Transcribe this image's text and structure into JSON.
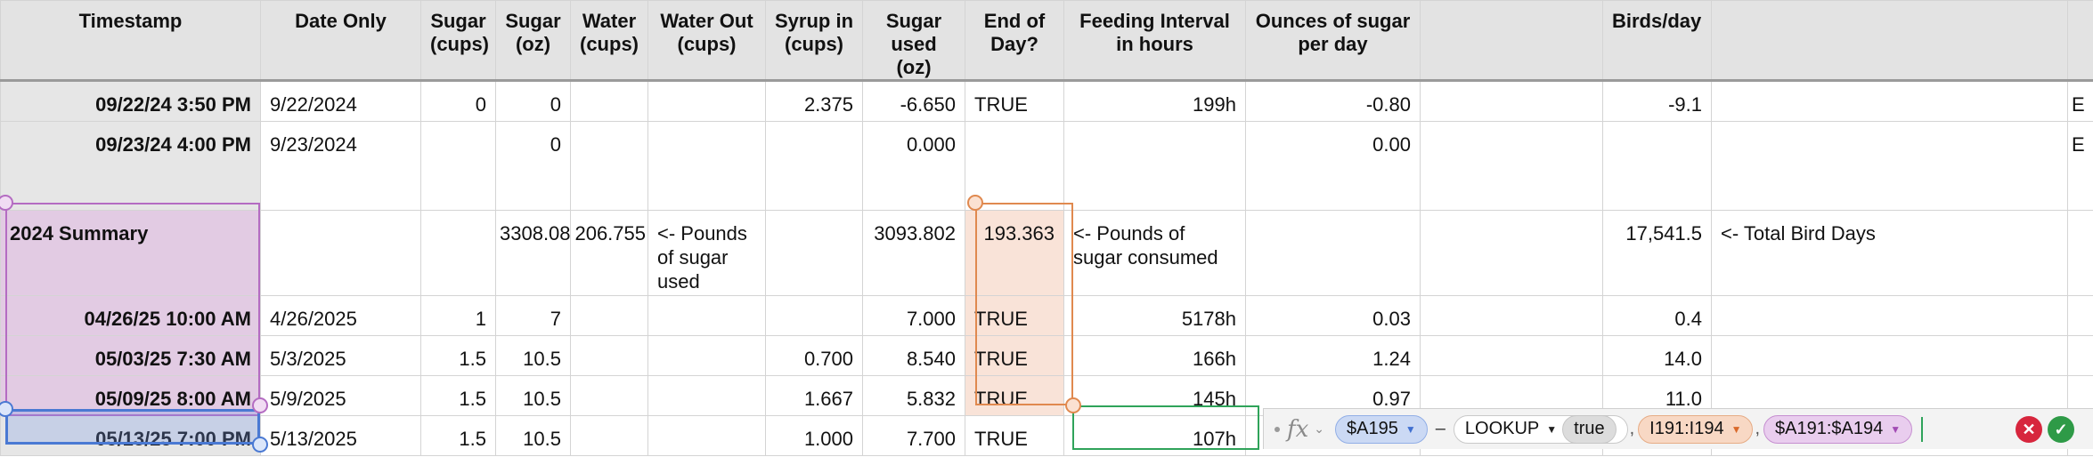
{
  "columns": [
    "Timestamp",
    "Date Only",
    "Sugar (cups)",
    "Sugar (oz)",
    "Water (cups)",
    "Water Out (cups)",
    "Syrup in (cups)",
    "Sugar used (oz)",
    "End of Day?",
    "Feeding Interval in hours",
    "Ounces of sugar per day",
    "",
    "Birds/day",
    "",
    ""
  ],
  "rows": [
    {
      "timestamp": "09/22/24 3:50 PM",
      "date": "9/22/2024",
      "sugar_cups": "0",
      "sugar_oz": "0",
      "water": "",
      "water_out": "",
      "syrup": "2.375",
      "sugar_used": "-6.650",
      "eod": "TRUE",
      "interval": "199h",
      "oz_per_day": "-0.80",
      "blank": "",
      "birds": "-9.1",
      "note": "",
      "overflow": "E"
    },
    {
      "timestamp": "09/23/24 4:00 PM",
      "date": "9/23/2024",
      "sugar_cups": "",
      "sugar_oz": "0",
      "water": "",
      "water_out": "",
      "syrup": "",
      "sugar_used": "0.000",
      "eod": "",
      "interval": "",
      "oz_per_day": "0.00",
      "blank": "",
      "birds": "",
      "note": "",
      "overflow": "E"
    },
    {
      "timestamp": "2024 Summary",
      "date": "",
      "sugar_cups": "",
      "sugar_oz": "3308.08",
      "water": "206.755",
      "water_out": "<- Pounds of sugar used",
      "syrup": "",
      "sugar_used": "3093.802",
      "eod": "193.363",
      "interval": "<- Pounds of sugar consumed",
      "oz_per_day": "",
      "blank": "",
      "birds": "17,541.5",
      "note": "<- Total Bird Days",
      "overflow": ""
    },
    {
      "timestamp": "04/26/25 10:00 AM",
      "date": "4/26/2025",
      "sugar_cups": "1",
      "sugar_oz": "7",
      "water": "",
      "water_out": "",
      "syrup": "",
      "sugar_used": "7.000",
      "eod": "TRUE",
      "interval": "5178h",
      "oz_per_day": "0.03",
      "blank": "",
      "birds": "0.4",
      "note": "",
      "overflow": ""
    },
    {
      "timestamp": "05/03/25 7:30 AM",
      "date": "5/3/2025",
      "sugar_cups": "1.5",
      "sugar_oz": "10.5",
      "water": "",
      "water_out": "",
      "syrup": "0.700",
      "sugar_used": "8.540",
      "eod": "TRUE",
      "interval": "166h",
      "oz_per_day": "1.24",
      "blank": "",
      "birds": "14.0",
      "note": "",
      "overflow": ""
    },
    {
      "timestamp": "05/09/25 8:00 AM",
      "date": "5/9/2025",
      "sugar_cups": "1.5",
      "sugar_oz": "10.5",
      "water": "",
      "water_out": "",
      "syrup": "1.667",
      "sugar_used": "5.832",
      "eod": "TRUE",
      "interval": "145h",
      "oz_per_day": "0.97",
      "blank": "",
      "birds": "11.0",
      "note": "",
      "overflow": ""
    },
    {
      "timestamp": "05/13/25 7:00 PM",
      "date": "5/13/2025",
      "sugar_cups": "1.5",
      "sugar_oz": "10.5",
      "water": "",
      "water_out": "",
      "syrup": "1.000",
      "sugar_used": "7.700",
      "eod": "TRUE",
      "interval": "107h",
      "oz_per_day": "",
      "blank": "",
      "birds": "",
      "note": "",
      "overflow": ""
    }
  ],
  "formula_bar": {
    "fx_label": "fx",
    "ref1": "$A195",
    "op": "–",
    "func": "LOOKUP",
    "arg_bool": "true",
    "comma": ",",
    "ref2": "I191:I194",
    "ref3": "$A191:$A194"
  },
  "colors": {
    "summary_selection": "#e2cbe3",
    "eod_selection": "#f9e3d8",
    "active_cell": "#4a79d3",
    "edit_cell": "#2fa35a"
  }
}
